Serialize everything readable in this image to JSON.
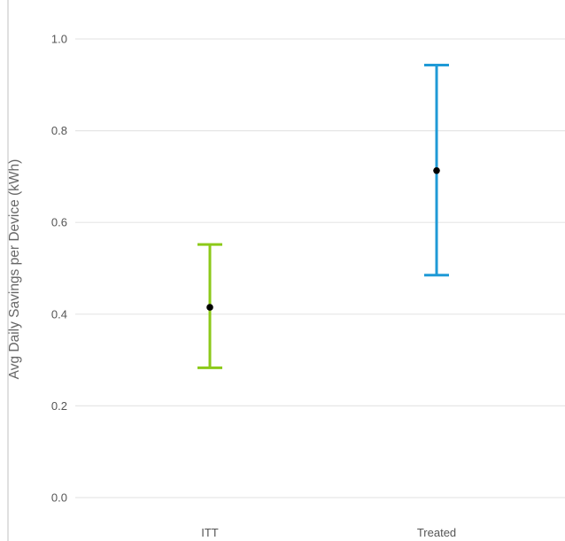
{
  "chart_data": {
    "type": "errorbar",
    "title": "",
    "xlabel": "",
    "ylabel": "Avg Daily Savings per Device (kWh)",
    "categories": [
      "ITT",
      "Treated"
    ],
    "series": [
      {
        "category": "ITT",
        "value": 0.415,
        "low": 0.283,
        "high": 0.552,
        "color": "#8cc919"
      },
      {
        "category": "Treated",
        "value": 0.713,
        "low": 0.485,
        "high": 0.943,
        "color": "#1f9ad6"
      }
    ],
    "yticks": [
      0.0,
      0.2,
      0.4,
      0.6,
      0.8,
      1.0
    ],
    "ytick_labels": [
      "0.0",
      "0.2",
      "0.4",
      "0.6",
      "0.8",
      "1.0"
    ],
    "ylim": [
      0.0,
      1.0
    ],
    "grid": true,
    "point_color": "#000000"
  }
}
